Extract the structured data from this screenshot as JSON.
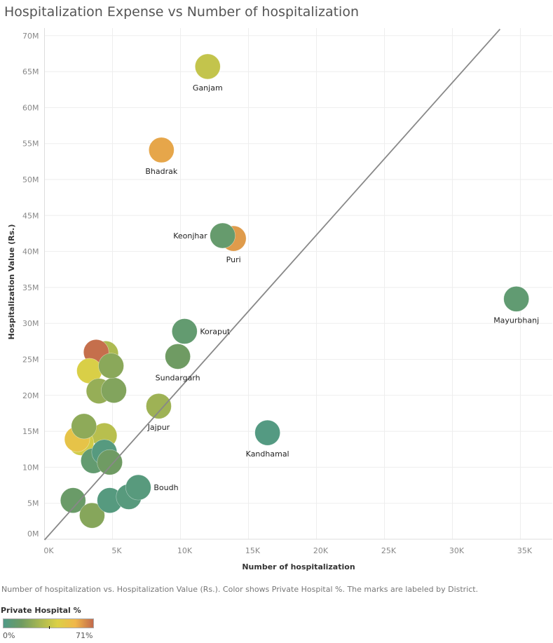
{
  "chart_data": {
    "type": "scatter",
    "title": "Hospitalization Expense vs Number of hospitalization",
    "xlabel": "Number of hospitalization",
    "ylabel": "Hospitalization Value (Rs.)",
    "xlim": [
      0,
      37400
    ],
    "ylim": [
      0,
      71000
    ],
    "x_ticks": [
      {
        "value": 0,
        "label": "0K"
      },
      {
        "value": 5000,
        "label": "5K"
      },
      {
        "value": 10000,
        "label": "10K"
      },
      {
        "value": 15000,
        "label": "15K"
      },
      {
        "value": 20000,
        "label": "20K"
      },
      {
        "value": 25000,
        "label": "25K"
      },
      {
        "value": 30000,
        "label": "30K"
      },
      {
        "value": 35000,
        "label": "35K"
      }
    ],
    "y_ticks": [
      {
        "value": 0,
        "label": "0M"
      },
      {
        "value": 5,
        "label": "5M"
      },
      {
        "value": 10,
        "label": "10M"
      },
      {
        "value": 15,
        "label": "15M"
      },
      {
        "value": 20,
        "label": "20M"
      },
      {
        "value": 25,
        "label": "25M"
      },
      {
        "value": 30,
        "label": "30M"
      },
      {
        "value": 35,
        "label": "35M"
      },
      {
        "value": 40,
        "label": "40M"
      },
      {
        "value": 45,
        "label": "45M"
      },
      {
        "value": 50,
        "label": "50M"
      },
      {
        "value": 55,
        "label": "55M"
      },
      {
        "value": 60,
        "label": "60M"
      },
      {
        "value": 65,
        "label": "65M"
      },
      {
        "value": 70,
        "label": "70M"
      }
    ],
    "y_unit": "M",
    "grid": true,
    "trend_line": {
      "x": [
        0,
        33500
      ],
      "y": [
        -0.1,
        70.9
      ]
    },
    "color_field": "Private Hospital %",
    "color_range": [
      0,
      71
    ],
    "points": [
      {
        "x": 4400,
        "y": 14.4,
        "pct": 33
      },
      {
        "x": 2700,
        "y": 13.4,
        "pct": 40
      },
      {
        "x": 2400,
        "y": 13.9,
        "pct": 50
      },
      {
        "x": 2900,
        "y": 15.7,
        "pct": 22
      },
      {
        "x": 3600,
        "y": 10.9,
        "pct": 9
      },
      {
        "x": 4400,
        "y": 12.1,
        "pct": 3
      },
      {
        "x": 4800,
        "y": 10.7,
        "pct": 14
      },
      {
        "x": 2100,
        "y": 5.4,
        "pct": 12
      },
      {
        "x": 3500,
        "y": 3.3,
        "pct": 20
      },
      {
        "x": 4800,
        "y": 5.4,
        "pct": 3
      },
      {
        "x": 6200,
        "y": 5.9,
        "pct": 4
      },
      {
        "x": 6900,
        "y": 7.2,
        "pct": 4,
        "label": "Boudh",
        "label_pos": "right"
      },
      {
        "x": 4500,
        "y": 25.8,
        "pct": 30
      },
      {
        "x": 3800,
        "y": 26.0,
        "pct": 70
      },
      {
        "x": 3300,
        "y": 23.4,
        "pct": 42
      },
      {
        "x": 4000,
        "y": 20.6,
        "pct": 24
      },
      {
        "x": 5100,
        "y": 20.7,
        "pct": 19
      },
      {
        "x": 4900,
        "y": 24.1,
        "pct": 21
      },
      {
        "x": 8400,
        "y": 18.5,
        "pct": 26,
        "label": "Jajpur",
        "label_pos": "below"
      },
      {
        "x": 9800,
        "y": 25.4,
        "pct": 14,
        "label": "Sundargarh",
        "label_pos": "below"
      },
      {
        "x": 10300,
        "y": 28.9,
        "pct": 9,
        "label": "Koraput",
        "label_pos": "right"
      },
      {
        "x": 16400,
        "y": 14.8,
        "pct": 2,
        "label": "Kandhamal",
        "label_pos": "below"
      },
      {
        "x": 13900,
        "y": 41.8,
        "pct": 62,
        "label": "Puri",
        "label_pos": "below"
      },
      {
        "x": 13100,
        "y": 42.2,
        "pct": 10,
        "label": "Keonjhar",
        "label_pos": "left"
      },
      {
        "x": 8600,
        "y": 54.1,
        "pct": 60,
        "label": "Bhadrak",
        "label_pos": "below"
      },
      {
        "x": 12000,
        "y": 65.7,
        "pct": 36,
        "label": "Ganjam",
        "label_pos": "below"
      },
      {
        "x": 34700,
        "y": 33.4,
        "pct": 8,
        "label": "Mayurbhanj",
        "label_pos": "below"
      }
    ]
  },
  "caption": "Number of hospitalization vs. Hospitalization Value (Rs.).  Color shows Private Hospital %.  The marks are labeled by District.",
  "legend": {
    "title": "Private Hospital %",
    "min_label": "0%",
    "max_label": "71%",
    "colors": [
      "#4f9a87",
      "#6f9b62",
      "#a7b752",
      "#dbd046",
      "#f0b74a",
      "#c26a4c"
    ]
  }
}
